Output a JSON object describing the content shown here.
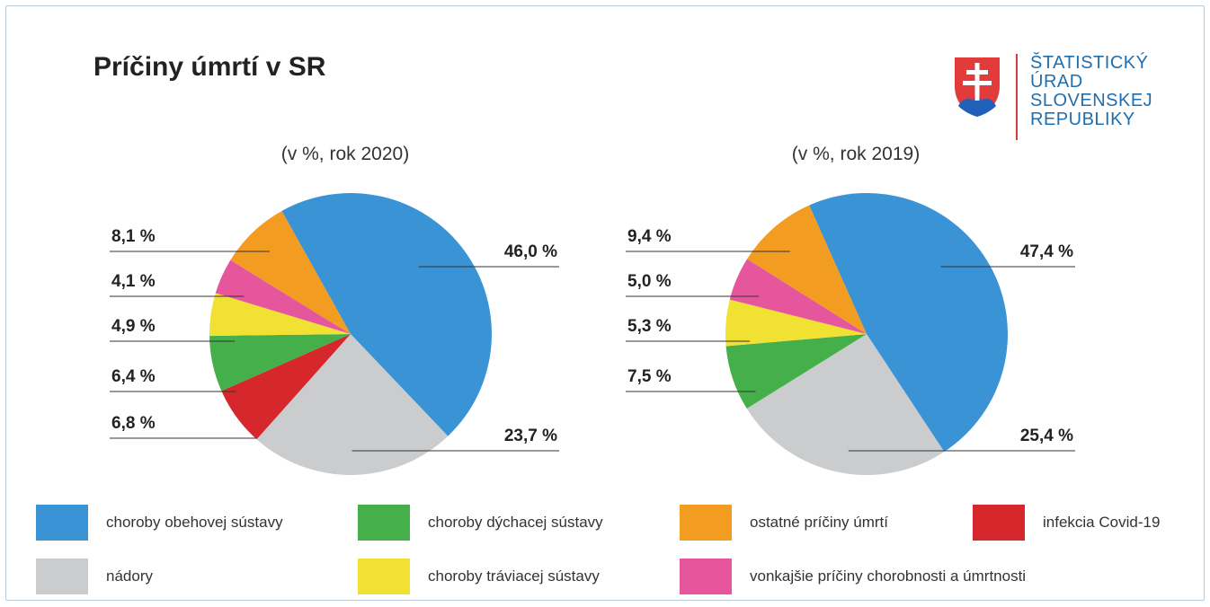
{
  "header": {
    "title": "Príčiny úmrtí v SR"
  },
  "logo": {
    "lines": [
      "ŠTATISTICKÝ",
      "ÚRAD",
      "SLOVENSKEJ",
      "REPUBLIKY"
    ]
  },
  "colors": {
    "obehova": "#3a93d4",
    "nadory": "#cbcccd",
    "dychacia": "#45b04a",
    "traviaca": "#f1e133",
    "ostatne": "#f29c22",
    "vonkajsie": "#e6569c",
    "covid": "#d6282c"
  },
  "legend": [
    {
      "key": "obehova",
      "label": "choroby obehovej sústavy"
    },
    {
      "key": "nadory",
      "label": "nádory"
    },
    {
      "key": "dychacia",
      "label": "choroby dýchacej sústavy"
    },
    {
      "key": "traviaca",
      "label": "choroby tráviacej sústavy"
    },
    {
      "key": "ostatne",
      "label": "ostatné príčiny úmrtí"
    },
    {
      "key": "vonkajsie",
      "label": "vonkajšie príčiny chorobnosti a úmrtnosti"
    },
    {
      "key": "covid",
      "label": "infekcia Covid-19"
    }
  ],
  "chart_data": [
    {
      "type": "pie",
      "title": "(v %, rok 2020)",
      "slices": [
        {
          "key": "obehova",
          "value": 46.0,
          "label": "46,0 %"
        },
        {
          "key": "nadory",
          "value": 23.7,
          "label": "23,7 %"
        },
        {
          "key": "covid",
          "value": 6.8,
          "label": "6,8 %"
        },
        {
          "key": "dychacia",
          "value": 6.4,
          "label": "6,4 %"
        },
        {
          "key": "traviaca",
          "value": 4.9,
          "label": "4,9 %"
        },
        {
          "key": "vonkajsie",
          "value": 4.1,
          "label": "4,1 %"
        },
        {
          "key": "ostatne",
          "value": 8.1,
          "label": "8,1 %"
        }
      ]
    },
    {
      "type": "pie",
      "title": "(v %, rok 2019)",
      "slices": [
        {
          "key": "obehova",
          "value": 47.4,
          "label": "47,4 %"
        },
        {
          "key": "nadory",
          "value": 25.4,
          "label": "25,4 %"
        },
        {
          "key": "dychacia",
          "value": 7.5,
          "label": "7,5 %"
        },
        {
          "key": "traviaca",
          "value": 5.3,
          "label": "5,3 %"
        },
        {
          "key": "vonkajsie",
          "value": 5.0,
          "label": "5,0 %"
        },
        {
          "key": "ostatne",
          "value": 9.4,
          "label": "9,4 %"
        }
      ]
    }
  ]
}
